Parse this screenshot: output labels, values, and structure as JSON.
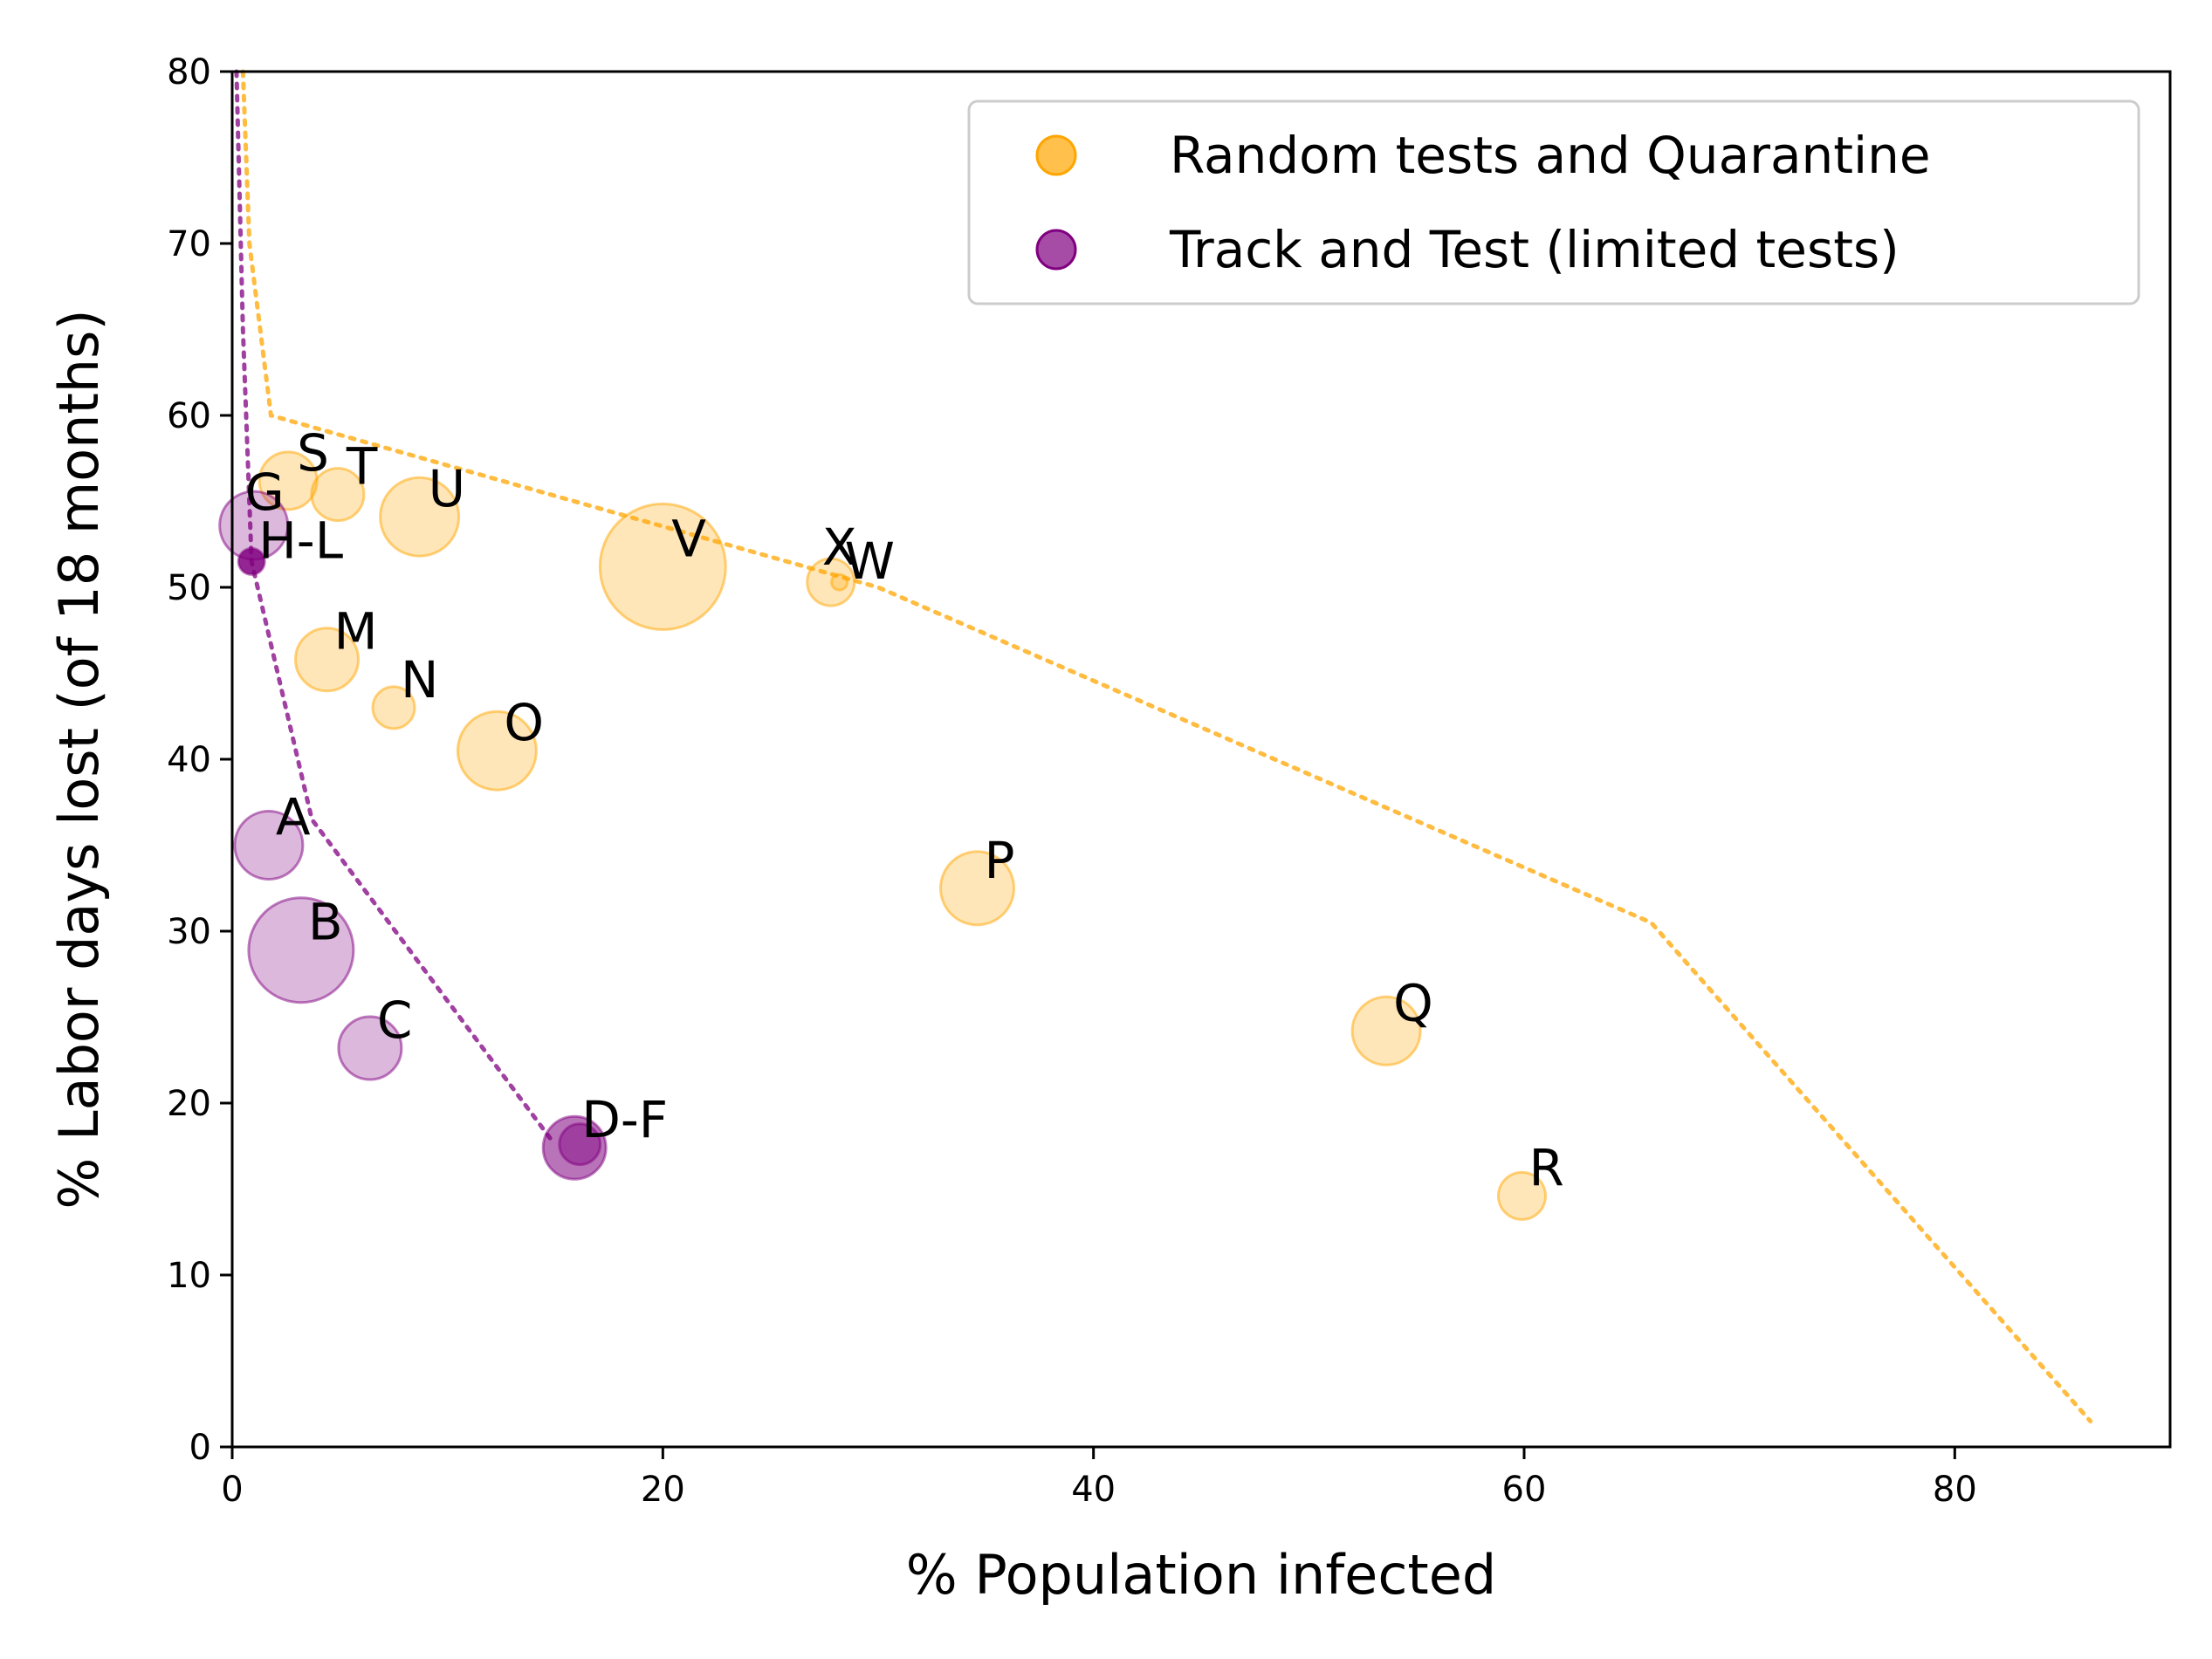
{
  "chart_data": {
    "type": "scatter",
    "title": "",
    "xlabel": "% Population infected",
    "ylabel": "% Labor days lost (of 18 months)",
    "xlim": [
      0,
      90
    ],
    "ylim": [
      0,
      80
    ],
    "xticks": [
      0,
      20,
      40,
      60,
      80
    ],
    "yticks": [
      0,
      10,
      20,
      30,
      40,
      50,
      60,
      70,
      80
    ],
    "grid": false,
    "legend_position": "top-right",
    "series": [
      {
        "name": "Random tests and Quarantine",
        "color": "#ffa500",
        "points": [
          {
            "label": "S",
            "x": 2.6,
            "y": 56.2,
            "size": 1.1
          },
          {
            "label": "T",
            "x": 4.9,
            "y": 55.4,
            "size": 1.0
          },
          {
            "label": "U",
            "x": 8.7,
            "y": 54.1,
            "size": 1.5
          },
          {
            "label": "V",
            "x": 20.0,
            "y": 51.2,
            "size": 2.4
          },
          {
            "label": "X",
            "x": 27.8,
            "y": 50.3,
            "size": 0.9
          },
          {
            "label": "W",
            "x": 28.2,
            "y": 50.3,
            "size": 0.3
          },
          {
            "label": "M",
            "x": 4.4,
            "y": 45.8,
            "size": 1.2
          },
          {
            "label": "N",
            "x": 7.5,
            "y": 43.0,
            "size": 0.8
          },
          {
            "label": "O",
            "x": 12.3,
            "y": 40.5,
            "size": 1.5
          },
          {
            "label": "P",
            "x": 34.6,
            "y": 32.5,
            "size": 1.4
          },
          {
            "label": "Q",
            "x": 53.6,
            "y": 24.2,
            "size": 1.3
          },
          {
            "label": "R",
            "x": 59.9,
            "y": 14.6,
            "size": 0.9
          }
        ],
        "frontier": [
          [
            0.5,
            80
          ],
          [
            0.8,
            70
          ],
          [
            1.8,
            60
          ],
          [
            30,
            50
          ],
          [
            65.9,
            30.5
          ],
          [
            86.3,
            1.5
          ]
        ]
      },
      {
        "name": "Track and Test (limited tests)",
        "color": "#800080",
        "points": [
          {
            "label": "G",
            "x": 1.0,
            "y": 53.6,
            "size": 1.3
          },
          {
            "label": "H-L",
            "x": 0.9,
            "y": 51.5,
            "size": 0.5
          },
          {
            "label": "A",
            "x": 1.7,
            "y": 35.0,
            "size": 1.3
          },
          {
            "label": "B",
            "x": 3.2,
            "y": 28.9,
            "size": 2.0
          },
          {
            "label": "C",
            "x": 6.4,
            "y": 23.2,
            "size": 1.2
          },
          {
            "label": "D-F",
            "x": 15.9,
            "y": 17.4,
            "size": 1.2
          }
        ],
        "frontier": [
          [
            0.2,
            80
          ],
          [
            0.5,
            65
          ],
          [
            0.9,
            51.5
          ],
          [
            3.7,
            36.5
          ],
          [
            14.8,
            17.9
          ]
        ]
      }
    ]
  }
}
